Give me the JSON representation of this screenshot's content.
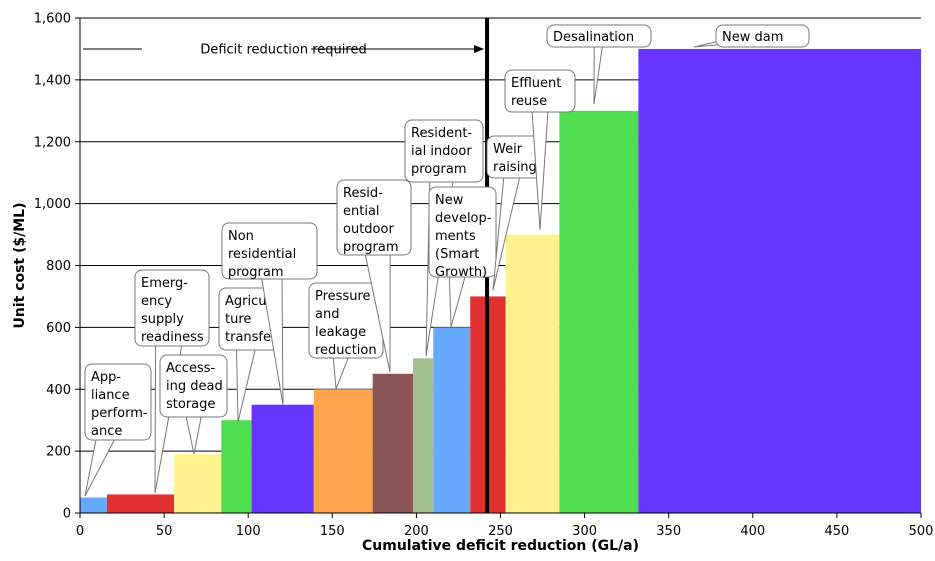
{
  "chart_data": {
    "type": "bar",
    "subtype": "variable-width step chart",
    "xlabel": "Cumulative deficit reduction (GL/a)",
    "ylabel": "Unit cost ($/ML)",
    "xlim": [
      0,
      500
    ],
    "ylim": [
      0,
      1600
    ],
    "x_ticks": [
      "0",
      "50",
      "100",
      "150",
      "200",
      "250",
      "300",
      "350",
      "400",
      "450",
      "500"
    ],
    "y_ticks": [
      "0",
      "200",
      "400",
      "600",
      "800",
      "1,000",
      "1,200",
      "1,400",
      "1,600"
    ],
    "grid": "horizontal",
    "legend": "none",
    "segments": [
      {
        "name": "Appliance performance",
        "label_lines": [
          "App-",
          "liance",
          "perform-",
          "ance"
        ],
        "x_start": 0,
        "x_end": 16,
        "value": 50,
        "color": "#66aaff"
      },
      {
        "name": "Emergency supply readiness",
        "label_lines": [
          "Emerg-",
          "ency",
          "supply",
          "readiness"
        ],
        "x_start": 16,
        "x_end": 56,
        "value": 60,
        "color": "#e03030"
      },
      {
        "name": "Accessing dead storage",
        "label_lines": [
          "Access-",
          "ing dead",
          "storage"
        ],
        "x_start": 56,
        "x_end": 84,
        "value": 190,
        "color": "#fff28f"
      },
      {
        "name": "Agriculture transfer",
        "label_lines": [
          "Agricul-",
          "ture",
          "transfer"
        ],
        "x_start": 84,
        "x_end": 102,
        "value": 300,
        "color": "#4fde4f"
      },
      {
        "name": "Non residential program",
        "label_lines": [
          "Non",
          "residential",
          "program"
        ],
        "x_start": 102,
        "x_end": 139,
        "value": 350,
        "color": "#6633ff"
      },
      {
        "name": "Pressure and leakage reduction",
        "label_lines": [
          "Pressure",
          "and",
          "leakage",
          "reduction"
        ],
        "x_start": 139,
        "x_end": 174,
        "value": 400,
        "color": "#ffa64d"
      },
      {
        "name": "Residential outdoor program",
        "label_lines": [
          "Resid-",
          "ential",
          "outdoor",
          "program"
        ],
        "x_start": 174,
        "x_end": 198,
        "value": 450,
        "color": "#8b5555"
      },
      {
        "name": "Residential indoor program",
        "label_lines": [
          "Resident-",
          "ial indoor",
          "program"
        ],
        "x_start": 198,
        "x_end": 210,
        "value": 500,
        "color": "#9fbf8f"
      },
      {
        "name": "New developments (Smart Growth)",
        "label_lines": [
          "New",
          "develop-",
          "ments",
          "(Smart",
          "Growth)"
        ],
        "x_start": 210,
        "x_end": 232,
        "value": 600,
        "color": "#66aaff"
      },
      {
        "name": "Weir raising",
        "label_lines": [
          "Weir",
          "raising"
        ],
        "x_start": 232,
        "x_end": 253,
        "value": 700,
        "color": "#e03030"
      },
      {
        "name": "Effluent reuse",
        "label_lines": [
          "Effluent",
          "reuse"
        ],
        "x_start": 253,
        "x_end": 285,
        "value": 900,
        "color": "#fff28f"
      },
      {
        "name": "Desalination",
        "label_lines": [
          "Desalination"
        ],
        "x_start": 285,
        "x_end": 332,
        "value": 1300,
        "color": "#4fde4f"
      },
      {
        "name": "New dam",
        "label_lines": [
          "New dam"
        ],
        "x_start": 332,
        "x_end": 500,
        "value": 1500,
        "color": "#6633ff"
      }
    ],
    "annotations": [
      {
        "text": "Deficit reduction required",
        "x_line": 242,
        "y_arrow": 1500
      }
    ]
  }
}
